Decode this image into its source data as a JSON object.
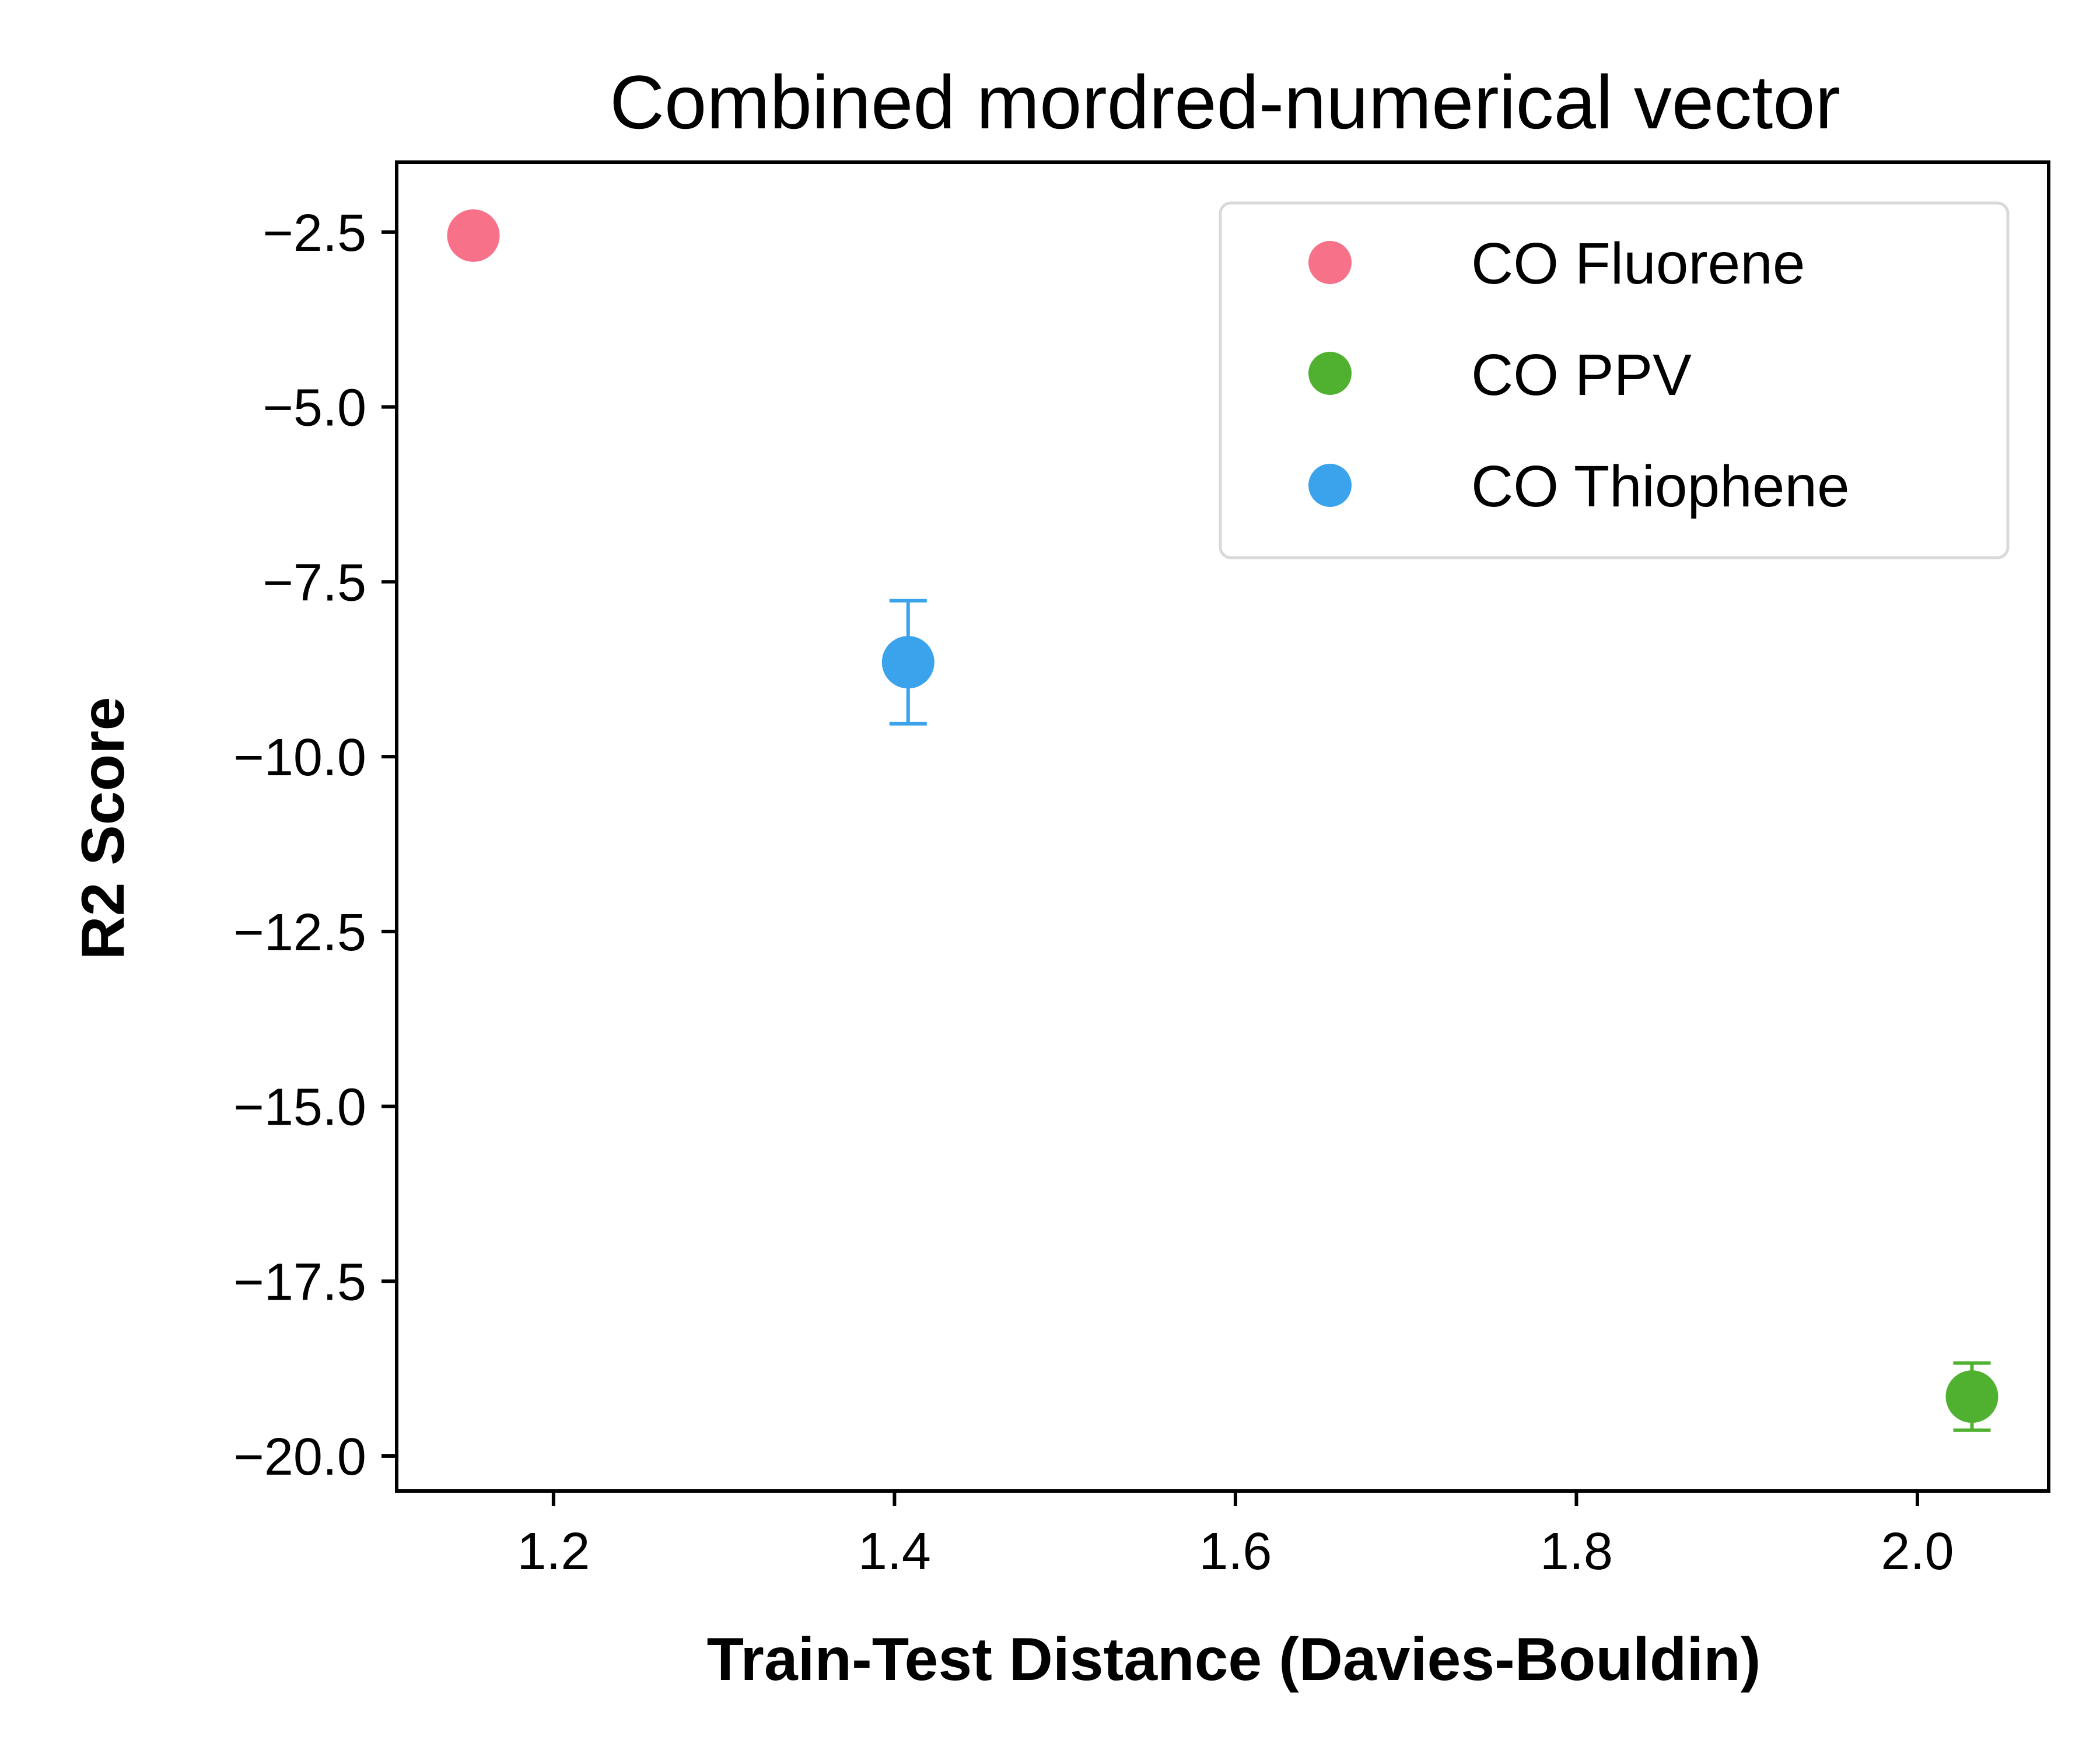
{
  "chart_data": {
    "type": "scatter",
    "title": "Combined mordred-numerical vector",
    "xlabel": "Train-Test Distance (Davies-Bouldin)",
    "ylabel": "R2 Score",
    "xlim": [
      1.108,
      2.077
    ],
    "ylim": [
      -20.5,
      -1.5
    ],
    "xticks": [
      1.2,
      1.4,
      1.6,
      1.8,
      2.0
    ],
    "xtick_labels": [
      "1.2",
      "1.4",
      "1.6",
      "1.8",
      "2.0"
    ],
    "yticks": [
      -2.5,
      -5.0,
      -7.5,
      -10.0,
      -12.5,
      -15.0,
      -17.5,
      -20.0
    ],
    "ytick_labels": [
      "−2.5",
      "−5.0",
      "−7.5",
      "−10.0",
      "−12.5",
      "−15.0",
      "−17.5",
      "−20.0"
    ],
    "grid": false,
    "legend_position": "top-right",
    "series": [
      {
        "name": "CO Fluorene",
        "color": "#f77189",
        "x": 1.153,
        "y": -2.55,
        "yerr": 0.0
      },
      {
        "name": "CO PPV",
        "color": "#50b131",
        "x": 2.032,
        "y": -19.15,
        "yerr": 0.48
      },
      {
        "name": "CO Thiophene",
        "color": "#3ba3ec",
        "x": 1.408,
        "y": -8.65,
        "yerr": 0.88
      }
    ]
  }
}
